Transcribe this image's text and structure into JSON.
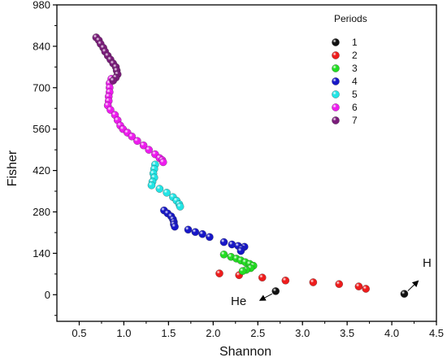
{
  "chart_data": {
    "type": "scatter",
    "xlabel": "Shannon",
    "ylabel": "Fisher",
    "xlim": [
      0.25,
      4.5
    ],
    "ylim": [
      -90,
      980
    ],
    "xticks": [
      "0.5",
      "1.0",
      "1.5",
      "2.0",
      "2.5",
      "3.0",
      "3.5",
      "4.0",
      "4.5"
    ],
    "yticks": [
      "0",
      "140",
      "280",
      "420",
      "560",
      "700",
      "840",
      "980"
    ],
    "legend": {
      "title": "Periods",
      "position": "top-right"
    },
    "series": [
      {
        "name": "1",
        "color": "#111111",
        "points": [
          [
            2.7,
            12
          ],
          [
            4.14,
            3
          ]
        ]
      },
      {
        "name": "2",
        "color": "#ee1c1c",
        "points": [
          [
            2.07,
            72
          ],
          [
            2.29,
            66
          ],
          [
            2.55,
            58
          ],
          [
            2.81,
            48
          ],
          [
            3.12,
            42
          ],
          [
            3.41,
            36
          ],
          [
            3.63,
            28
          ],
          [
            3.71,
            20
          ]
        ]
      },
      {
        "name": "3",
        "color": "#22dd22",
        "points": [
          [
            2.12,
            136
          ],
          [
            2.2,
            128
          ],
          [
            2.26,
            122
          ],
          [
            2.31,
            116
          ],
          [
            2.36,
            110
          ],
          [
            2.41,
            104
          ],
          [
            2.45,
            98
          ],
          [
            2.42,
            90
          ],
          [
            2.37,
            84
          ],
          [
            2.33,
            80
          ]
        ]
      },
      {
        "name": "4",
        "color": "#1717c8",
        "points": [
          [
            1.45,
            285
          ],
          [
            1.49,
            275
          ],
          [
            1.53,
            265
          ],
          [
            1.55,
            255
          ],
          [
            1.56,
            246
          ],
          [
            1.56,
            238
          ],
          [
            1.57,
            230
          ],
          [
            1.72,
            220
          ],
          [
            1.8,
            212
          ],
          [
            1.88,
            205
          ],
          [
            1.96,
            195
          ],
          [
            2.12,
            178
          ],
          [
            2.21,
            170
          ],
          [
            2.28,
            165
          ],
          [
            2.35,
            162
          ],
          [
            2.32,
            155
          ],
          [
            2.31,
            148
          ]
        ]
      },
      {
        "name": "5",
        "color": "#22e5e5",
        "points": [
          [
            1.35,
            440
          ],
          [
            1.34,
            425
          ],
          [
            1.33,
            410
          ],
          [
            1.34,
            396
          ],
          [
            1.32,
            382
          ],
          [
            1.31,
            370
          ],
          [
            1.4,
            358
          ],
          [
            1.48,
            345
          ],
          [
            1.55,
            330
          ],
          [
            1.59,
            318
          ],
          [
            1.62,
            306
          ],
          [
            1.63,
            298
          ]
        ]
      },
      {
        "name": "6",
        "color": "#ee1cee",
        "points": [
          [
            0.86,
            730
          ],
          [
            0.84,
            715
          ],
          [
            0.84,
            700
          ],
          [
            0.84,
            685
          ],
          [
            0.83,
            670
          ],
          [
            0.83,
            655
          ],
          [
            0.82,
            640
          ],
          [
            0.85,
            625
          ],
          [
            0.9,
            608
          ],
          [
            0.93,
            590
          ],
          [
            0.96,
            572
          ],
          [
            0.99,
            560
          ],
          [
            1.04,
            548
          ],
          [
            1.09,
            535
          ],
          [
            1.15,
            520
          ],
          [
            1.22,
            505
          ],
          [
            1.28,
            490
          ],
          [
            1.35,
            475
          ],
          [
            1.4,
            462
          ],
          [
            1.43,
            455
          ],
          [
            1.44,
            448
          ]
        ]
      },
      {
        "name": "7",
        "color": "#7a1b7a",
        "points": [
          [
            0.69,
            870
          ],
          [
            0.72,
            860
          ],
          [
            0.74,
            848
          ],
          [
            0.77,
            835
          ],
          [
            0.79,
            822
          ],
          [
            0.82,
            808
          ],
          [
            0.85,
            795
          ],
          [
            0.88,
            782
          ],
          [
            0.91,
            770
          ],
          [
            0.92,
            758
          ],
          [
            0.93,
            745
          ],
          [
            0.91,
            734
          ],
          [
            0.88,
            724
          ]
        ]
      }
    ],
    "annotations": [
      {
        "text": "He",
        "arrow_from": [
          2.66,
          3
        ],
        "arrow_to": [
          2.53,
          -18
        ]
      },
      {
        "text": "H",
        "arrow_from": [
          4.18,
          13
        ],
        "arrow_to": [
          4.29,
          45
        ]
      }
    ]
  }
}
